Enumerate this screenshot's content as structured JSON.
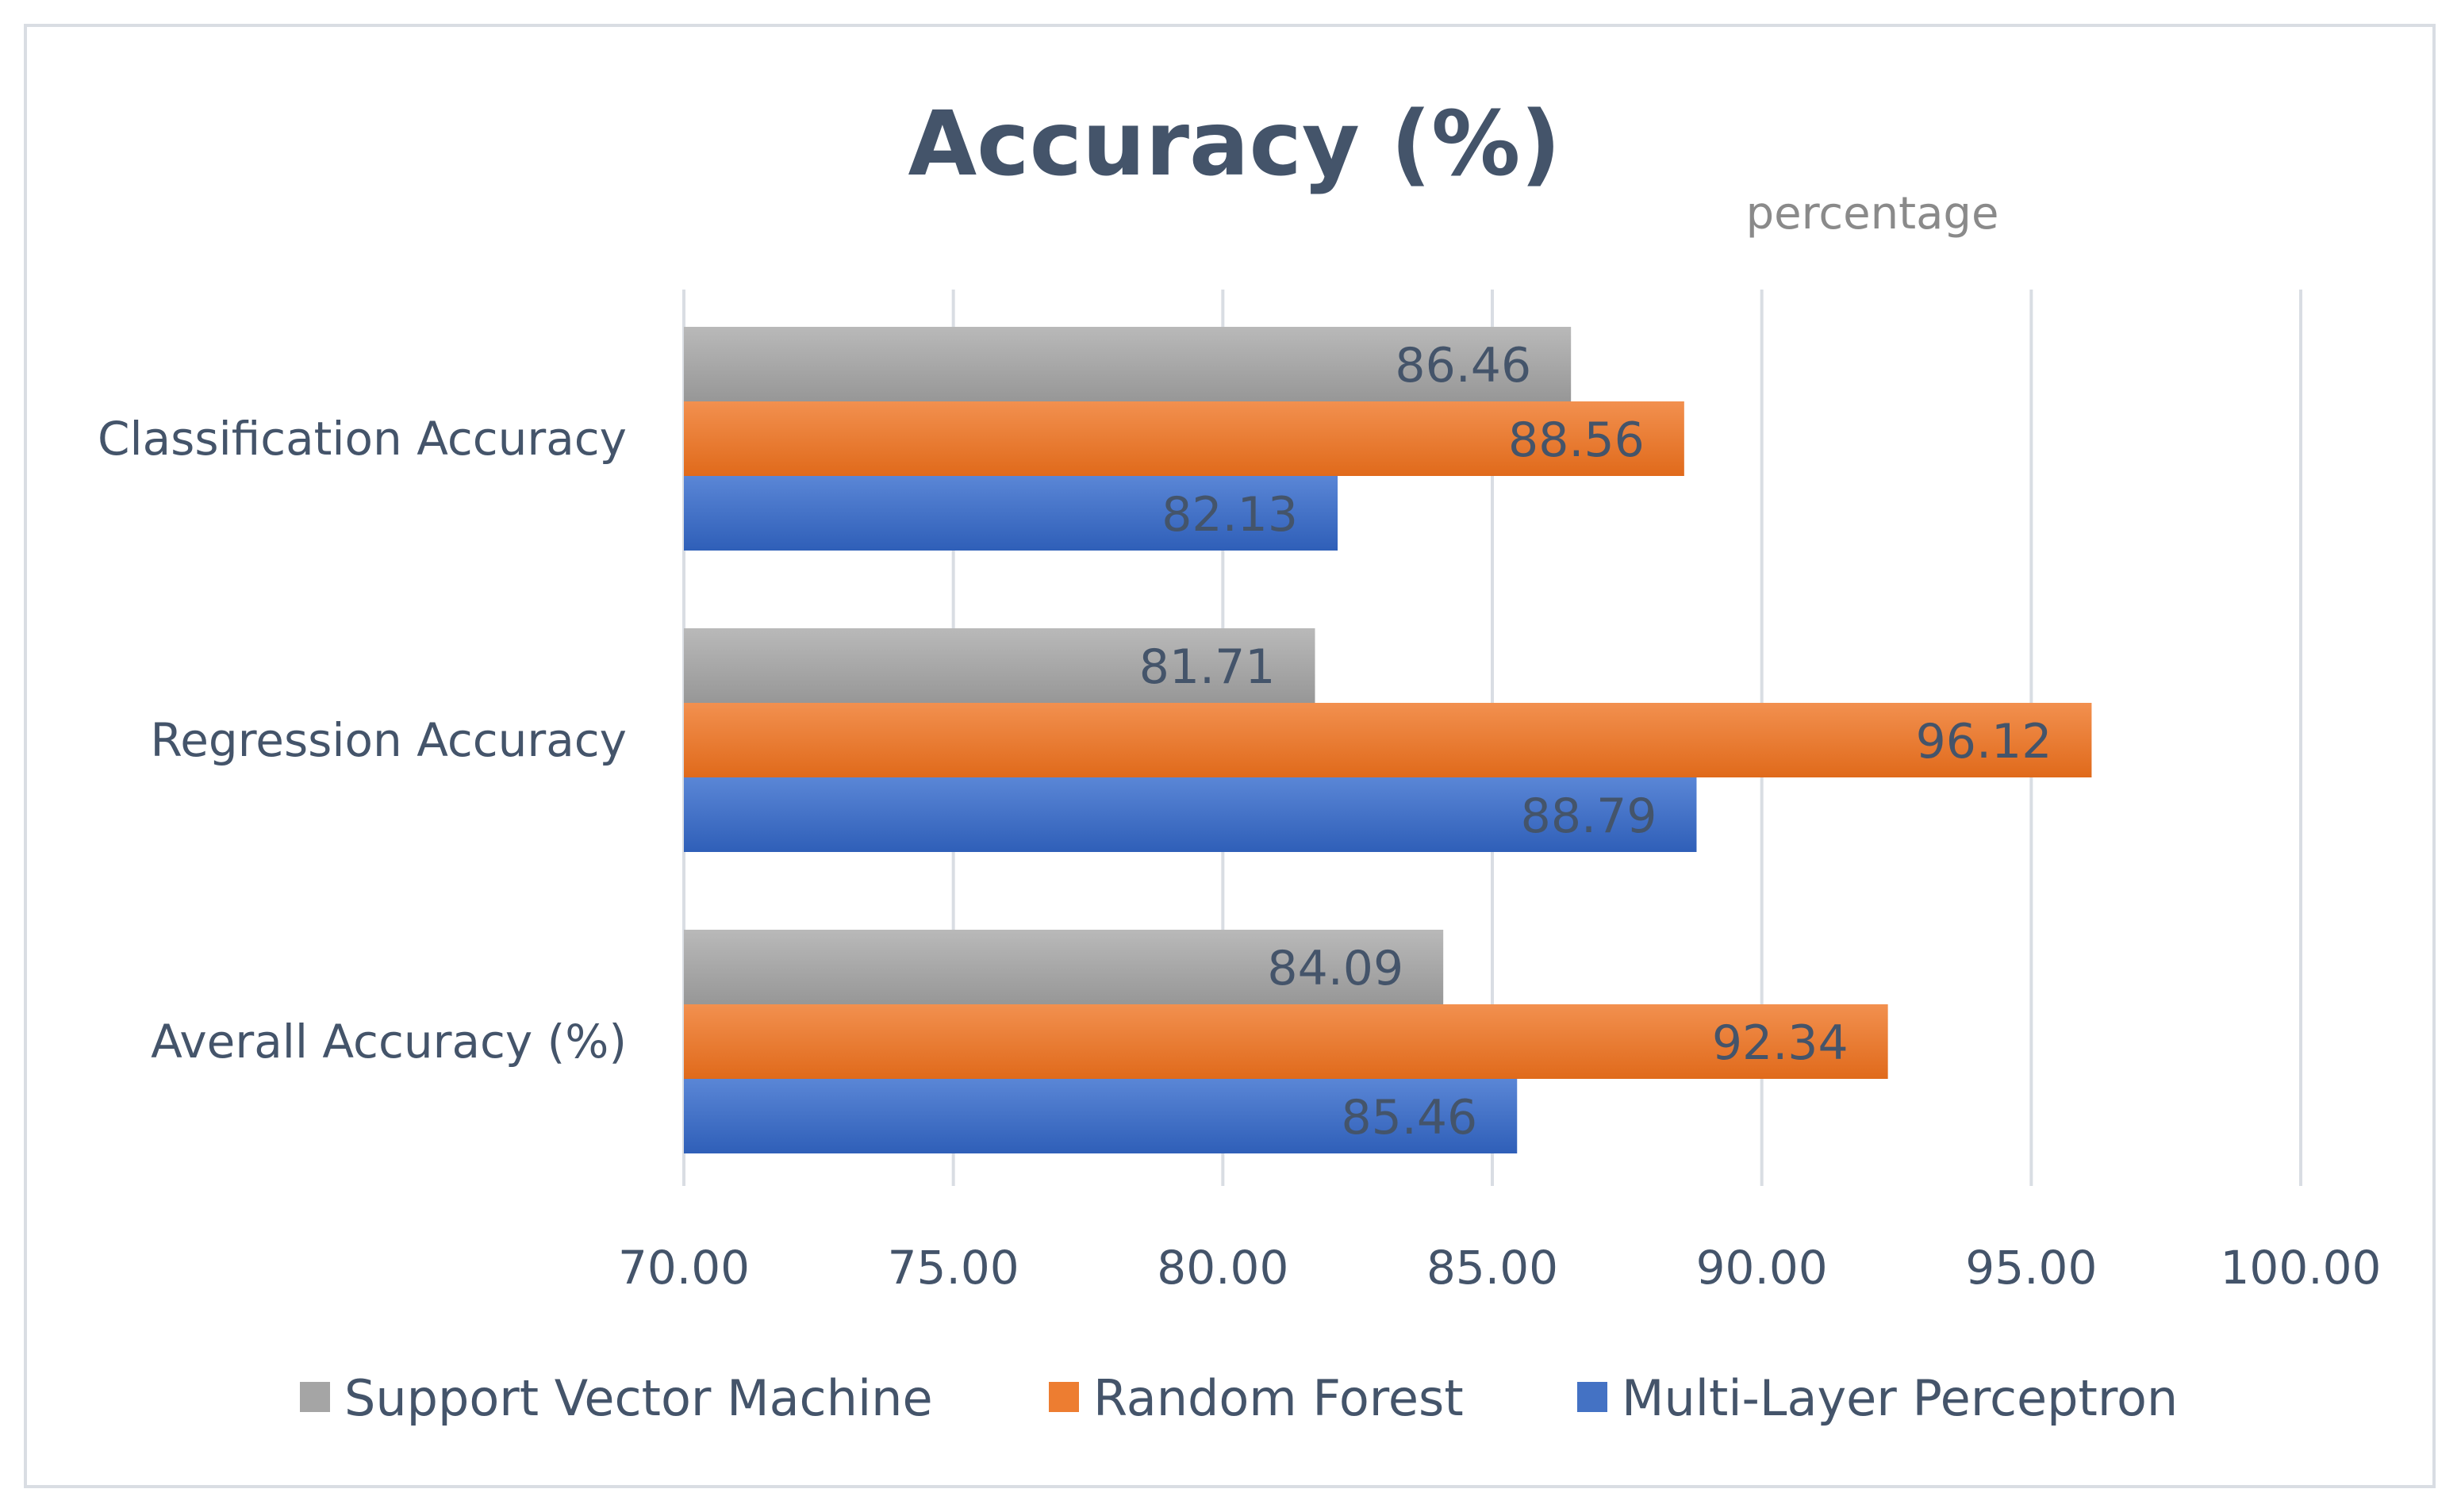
{
  "chart_data": {
    "type": "bar",
    "orientation": "horizontal",
    "title": "Accuracy (%)",
    "subtitle": "percentage",
    "categories": [
      "Classification Accuracy",
      "Regression Accuracy",
      "Averall Accuracy (%)"
    ],
    "series": [
      {
        "name": "Support Vector Machine",
        "color": "#a5a5a5",
        "values": [
          86.46,
          81.71,
          84.09
        ]
      },
      {
        "name": "Random Forest",
        "color": "#ed7d31",
        "values": [
          88.56,
          96.12,
          92.34
        ]
      },
      {
        "name": "Multi-Layer Perceptron",
        "color": "#4472c4",
        "values": [
          82.13,
          88.79,
          85.46
        ]
      }
    ],
    "xlim": [
      70,
      100
    ],
    "xticks": [
      "70.00",
      "75.00",
      "80.00",
      "85.00",
      "90.00",
      "95.00",
      "100.00"
    ],
    "xtick_values": [
      70,
      75,
      80,
      85,
      90,
      95,
      100
    ],
    "value_format_decimals": 2,
    "grid": true,
    "legend_position": "bottom"
  }
}
